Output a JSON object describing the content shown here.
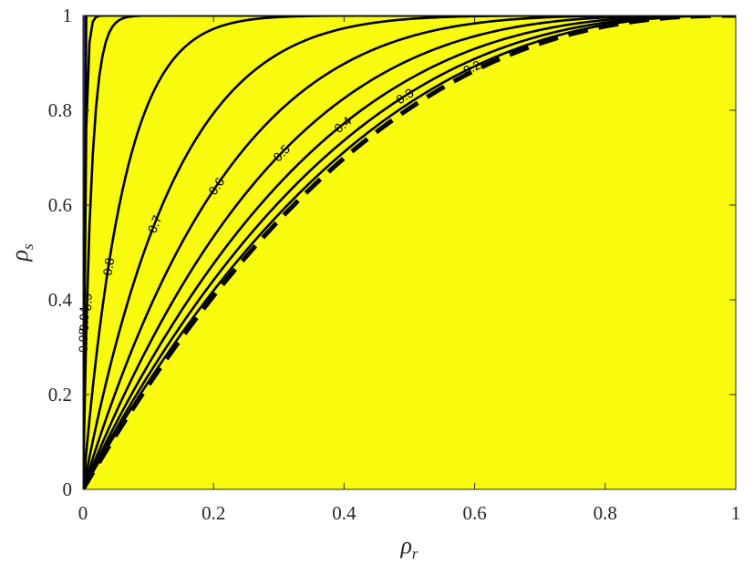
{
  "chart_data": {
    "type": "contour",
    "title": "",
    "xlabel": {
      "symbol": "ρ",
      "subscript": "r"
    },
    "ylabel": {
      "symbol": "ρ",
      "subscript": "s"
    },
    "xlim": [
      0,
      1
    ],
    "ylim": [
      0,
      1
    ],
    "xticks": [
      0,
      0.2,
      0.4,
      0.6,
      0.8,
      1
    ],
    "yticks": [
      0,
      0.2,
      0.4,
      0.6,
      0.8,
      1
    ],
    "xtick_labels": [
      "0",
      "0.2",
      "0.4",
      "0.6",
      "0.8",
      "1"
    ],
    "ytick_labels": [
      "0",
      "0.2",
      "0.4",
      "0.6",
      "0.8",
      "1"
    ],
    "grid": false,
    "levels": [
      0.2,
      0.3,
      0.4,
      0.5,
      0.6,
      0.7,
      0.8,
      0.9,
      0.94,
      0.98
    ],
    "level_labels": [
      "0.2",
      "0.3",
      "0.4",
      "0.5",
      "0.6",
      "0.7",
      "0.8",
      "0.9",
      "0.94",
      "0.98"
    ],
    "band_colors": [
      "#352a87",
      "#3a3fb8",
      "#2f5fe0",
      "#1682d8",
      "#1aa7c4",
      "#3ab9a2",
      "#58be84",
      "#c3bb3e",
      "#f7ba3a",
      "#ecd23c",
      "#f9fb0e"
    ],
    "boundary_curve": {
      "style": "dashed",
      "points": [
        [
          0,
          0
        ],
        [
          0.2,
          0.36
        ],
        [
          0.4,
          0.64
        ],
        [
          0.6,
          0.84
        ],
        [
          0.8,
          0.96
        ],
        [
          1,
          1
        ]
      ]
    }
  }
}
